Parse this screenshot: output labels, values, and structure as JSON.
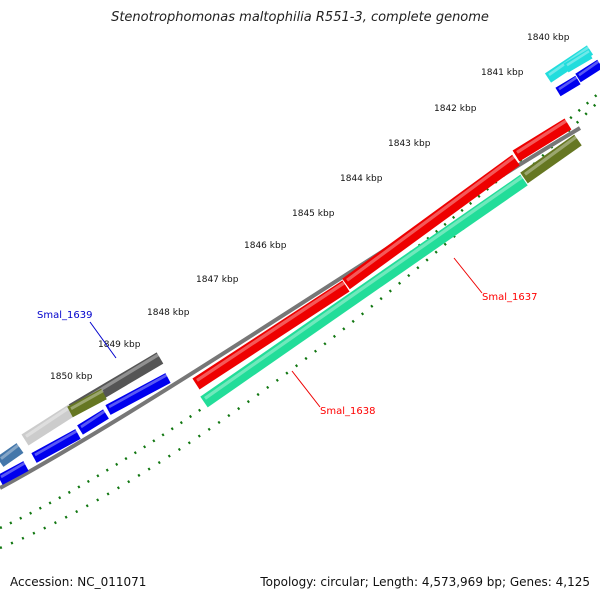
{
  "title": "Stenotrophomonas maltophilia R551-3, complete genome",
  "footer": {
    "accession": "Accession: NC_011071",
    "summary": "Topology: circular; Length: 4,573,969 bp; Genes: 4,125"
  },
  "ticks": [
    "1840 kbp",
    "1841 kbp",
    "1842 kbp",
    "1843 kbp",
    "1844 kbp",
    "1845 kbp",
    "1846 kbp",
    "1847 kbp",
    "1848 kbp",
    "1849 kbp",
    "1850 kbp"
  ],
  "genes": [
    {
      "label": "Smal_1637",
      "color": "#ff0000"
    },
    {
      "label": "Smal_1638",
      "color": "#ff0000"
    },
    {
      "label": "Smal_1639",
      "color": "#0000cc"
    }
  ],
  "colors": {
    "red": "#ee0000",
    "teal": "#22dd99",
    "olive": "#667722",
    "blue": "#0000ee",
    "cyan": "#22dddd",
    "gray_dark": "#555555",
    "gray_light": "#cccccc",
    "steel": "#4477aa",
    "backbone": "#777777",
    "tick": "#117711"
  }
}
